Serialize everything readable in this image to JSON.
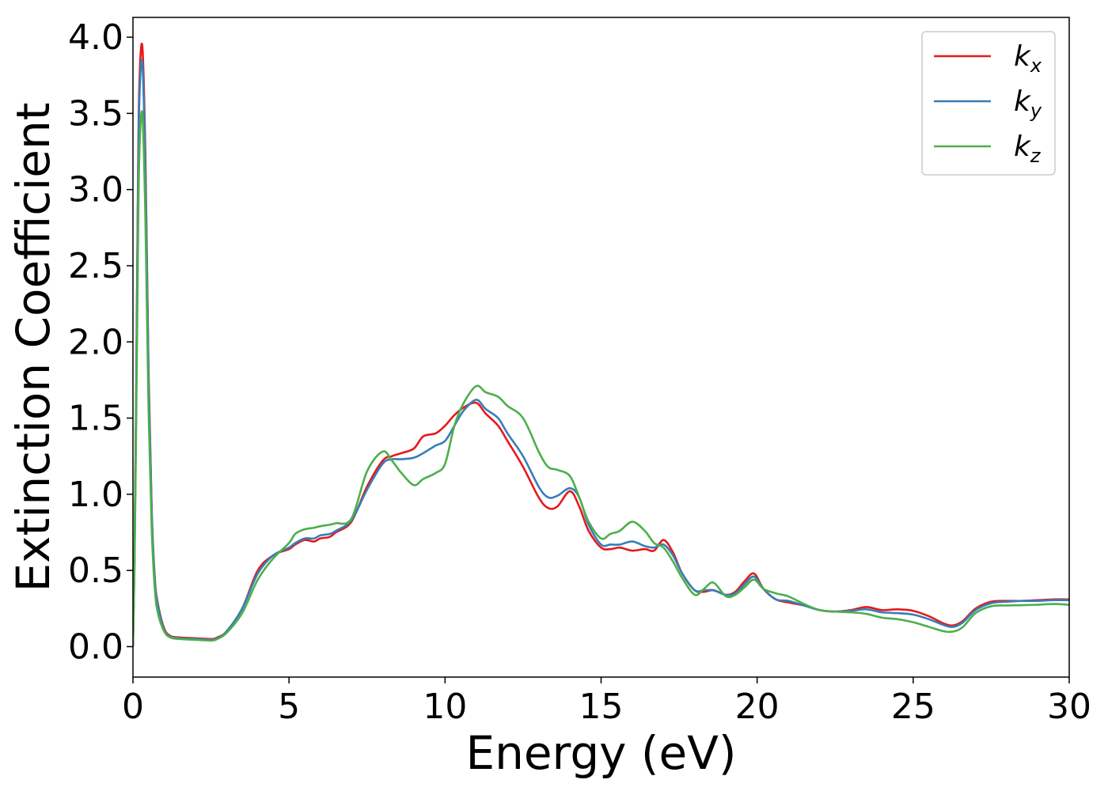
{
  "chart_data": {
    "type": "line",
    "xlabel": "Energy (eV)",
    "ylabel": "Extinction Coefficient",
    "xlim": [
      0,
      30
    ],
    "ylim": [
      -0.2,
      4.13
    ],
    "x_ticks": [
      "0",
      "5",
      "10",
      "15",
      "20",
      "25",
      "30"
    ],
    "y_ticks": [
      "0.0",
      "0.5",
      "1.0",
      "1.5",
      "2.0",
      "2.5",
      "3.0",
      "3.5",
      "4.0"
    ],
    "x_tick_values": [
      0,
      5,
      10,
      15,
      20,
      25,
      30
    ],
    "y_tick_values": [
      0,
      0.5,
      1.0,
      1.5,
      2.0,
      2.5,
      3.0,
      3.5,
      4.0
    ],
    "grid": false,
    "legend_position": "top-right",
    "series": [
      {
        "name": "k",
        "subscript": "x",
        "color": "#e41a1c",
        "x": [
          0,
          0.05,
          0.1,
          0.15,
          0.2,
          0.3,
          0.4,
          0.5,
          0.6,
          0.7,
          0.8,
          1.0,
          1.2,
          1.5,
          2.0,
          2.5,
          2.7,
          3.0,
          3.5,
          4.0,
          4.5,
          5.0,
          5.2,
          5.5,
          5.8,
          6.0,
          6.3,
          6.5,
          7.0,
          7.5,
          8.0,
          8.3,
          8.6,
          9.0,
          9.3,
          9.7,
          10.0,
          10.3,
          10.6,
          11.0,
          11.3,
          11.7,
          12.0,
          12.5,
          13.0,
          13.3,
          13.6,
          14.0,
          14.3,
          14.6,
          15.0,
          15.3,
          15.6,
          16.0,
          16.4,
          16.7,
          17.0,
          17.3,
          17.6,
          18.0,
          18.3,
          18.6,
          19.0,
          19.3,
          19.6,
          19.9,
          20.2,
          20.6,
          21.0,
          21.5,
          22.0,
          22.5,
          23.0,
          23.5,
          24.0,
          24.5,
          25.0,
          25.5,
          26.0,
          26.3,
          26.6,
          27.0,
          27.5,
          28.0,
          28.5,
          29.0,
          29.5,
          30.0
        ],
        "y": [
          0.0,
          0.6,
          1.6,
          2.8,
          3.65,
          3.94,
          3.2,
          1.8,
          0.9,
          0.45,
          0.28,
          0.12,
          0.07,
          0.06,
          0.055,
          0.05,
          0.06,
          0.1,
          0.25,
          0.5,
          0.6,
          0.64,
          0.67,
          0.7,
          0.69,
          0.71,
          0.72,
          0.75,
          0.82,
          1.05,
          1.22,
          1.25,
          1.27,
          1.3,
          1.38,
          1.4,
          1.45,
          1.52,
          1.57,
          1.6,
          1.53,
          1.45,
          1.35,
          1.18,
          0.98,
          0.91,
          0.92,
          1.02,
          0.92,
          0.76,
          0.65,
          0.64,
          0.65,
          0.63,
          0.64,
          0.63,
          0.7,
          0.62,
          0.48,
          0.37,
          0.36,
          0.37,
          0.34,
          0.36,
          0.43,
          0.48,
          0.38,
          0.31,
          0.29,
          0.27,
          0.24,
          0.23,
          0.24,
          0.26,
          0.24,
          0.245,
          0.235,
          0.2,
          0.15,
          0.14,
          0.17,
          0.25,
          0.295,
          0.3,
          0.3,
          0.305,
          0.31,
          0.31
        ]
      },
      {
        "name": "k",
        "subscript": "y",
        "color": "#377eb8",
        "x": [
          0,
          0.05,
          0.1,
          0.15,
          0.2,
          0.3,
          0.4,
          0.5,
          0.6,
          0.7,
          0.8,
          1.0,
          1.2,
          1.5,
          2.0,
          2.5,
          2.7,
          3.0,
          3.5,
          4.0,
          4.5,
          5.0,
          5.2,
          5.5,
          5.8,
          6.0,
          6.3,
          6.5,
          7.0,
          7.5,
          8.0,
          8.3,
          8.6,
          9.0,
          9.3,
          9.7,
          10.0,
          10.3,
          10.6,
          11.0,
          11.3,
          11.7,
          12.0,
          12.5,
          13.0,
          13.3,
          13.6,
          14.0,
          14.3,
          14.6,
          15.0,
          15.3,
          15.6,
          16.0,
          16.4,
          16.7,
          17.0,
          17.3,
          17.6,
          18.0,
          18.3,
          18.6,
          19.0,
          19.3,
          19.6,
          19.9,
          20.2,
          20.6,
          21.0,
          21.5,
          22.0,
          22.5,
          23.0,
          23.5,
          24.0,
          24.5,
          25.0,
          25.5,
          26.0,
          26.3,
          26.6,
          27.0,
          27.5,
          28.0,
          28.5,
          29.0,
          29.5,
          30.0
        ],
        "y": [
          0.0,
          0.58,
          1.55,
          2.7,
          3.55,
          3.83,
          3.1,
          1.75,
          0.88,
          0.44,
          0.27,
          0.11,
          0.065,
          0.055,
          0.05,
          0.045,
          0.055,
          0.1,
          0.25,
          0.48,
          0.6,
          0.65,
          0.68,
          0.71,
          0.71,
          0.73,
          0.74,
          0.76,
          0.83,
          1.03,
          1.2,
          1.23,
          1.23,
          1.24,
          1.27,
          1.32,
          1.35,
          1.45,
          1.55,
          1.62,
          1.56,
          1.5,
          1.4,
          1.25,
          1.05,
          0.98,
          0.99,
          1.04,
          0.98,
          0.8,
          0.67,
          0.67,
          0.67,
          0.69,
          0.66,
          0.65,
          0.67,
          0.6,
          0.48,
          0.37,
          0.37,
          0.37,
          0.34,
          0.35,
          0.41,
          0.46,
          0.38,
          0.31,
          0.3,
          0.27,
          0.24,
          0.23,
          0.235,
          0.245,
          0.225,
          0.22,
          0.21,
          0.18,
          0.14,
          0.13,
          0.16,
          0.24,
          0.285,
          0.295,
          0.3,
          0.3,
          0.305,
          0.305
        ]
      },
      {
        "name": "k",
        "subscript": "z",
        "color": "#4daf4a",
        "x": [
          0,
          0.05,
          0.1,
          0.15,
          0.2,
          0.3,
          0.4,
          0.5,
          0.6,
          0.7,
          0.8,
          1.0,
          1.2,
          1.5,
          2.0,
          2.5,
          2.7,
          3.0,
          3.5,
          4.0,
          4.5,
          5.0,
          5.2,
          5.5,
          5.8,
          6.0,
          6.3,
          6.5,
          7.0,
          7.5,
          8.0,
          8.3,
          8.6,
          9.0,
          9.3,
          9.7,
          10.0,
          10.3,
          10.6,
          11.0,
          11.3,
          11.7,
          12.0,
          12.5,
          13.0,
          13.3,
          13.6,
          14.0,
          14.3,
          14.6,
          15.0,
          15.3,
          15.6,
          16.0,
          16.4,
          16.7,
          17.0,
          17.3,
          17.6,
          18.0,
          18.3,
          18.6,
          19.0,
          19.3,
          19.6,
          19.9,
          20.2,
          20.6,
          21.0,
          21.5,
          22.0,
          22.5,
          23.0,
          23.5,
          24.0,
          24.5,
          25.0,
          25.5,
          26.0,
          26.3,
          26.6,
          27.0,
          27.5,
          28.0,
          28.5,
          29.0,
          29.5,
          30.0
        ],
        "y": [
          0.0,
          0.52,
          1.4,
          2.4,
          3.2,
          3.5,
          2.8,
          1.55,
          0.78,
          0.38,
          0.22,
          0.1,
          0.06,
          0.05,
          0.045,
          0.04,
          0.05,
          0.09,
          0.22,
          0.44,
          0.58,
          0.68,
          0.74,
          0.77,
          0.78,
          0.79,
          0.8,
          0.81,
          0.84,
          1.15,
          1.28,
          1.22,
          1.14,
          1.06,
          1.1,
          1.14,
          1.2,
          1.45,
          1.6,
          1.71,
          1.67,
          1.64,
          1.58,
          1.5,
          1.28,
          1.18,
          1.16,
          1.12,
          0.98,
          0.82,
          0.71,
          0.74,
          0.76,
          0.82,
          0.76,
          0.68,
          0.65,
          0.56,
          0.45,
          0.34,
          0.38,
          0.42,
          0.33,
          0.34,
          0.39,
          0.44,
          0.38,
          0.35,
          0.33,
          0.28,
          0.24,
          0.23,
          0.225,
          0.215,
          0.19,
          0.18,
          0.16,
          0.13,
          0.1,
          0.1,
          0.13,
          0.22,
          0.265,
          0.27,
          0.272,
          0.275,
          0.28,
          0.275
        ]
      }
    ]
  }
}
